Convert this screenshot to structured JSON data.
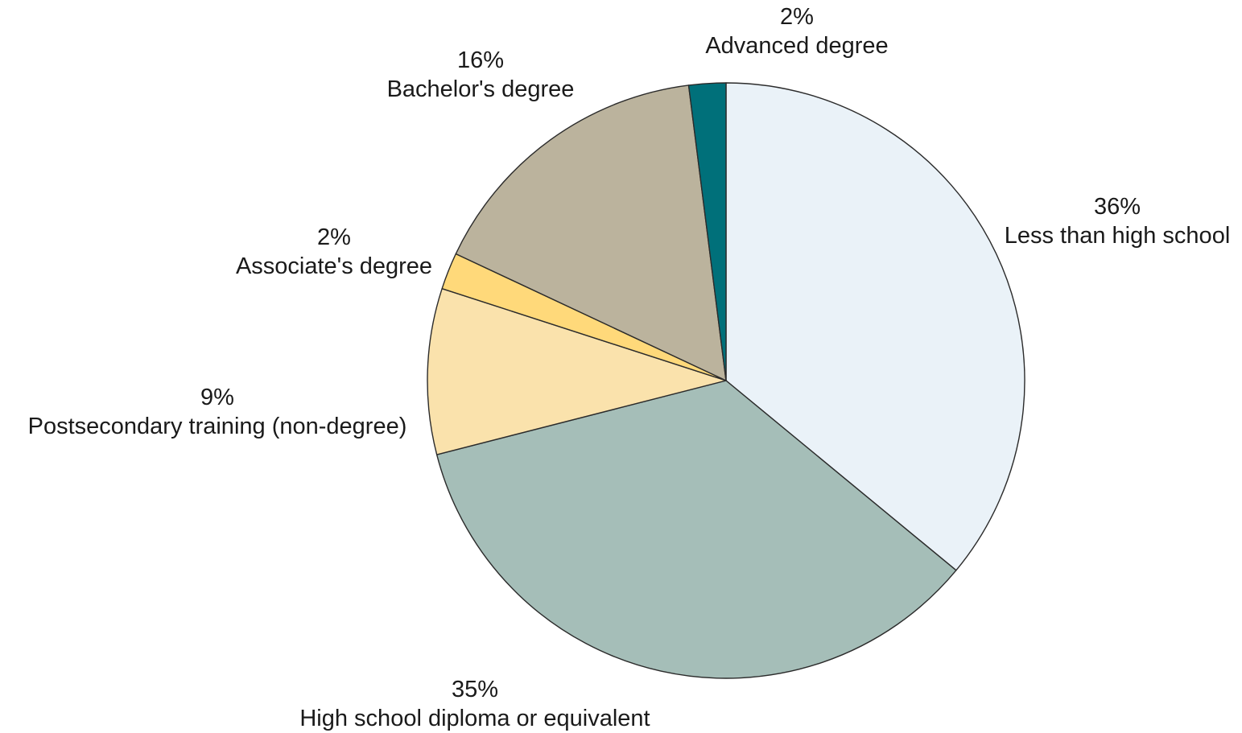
{
  "chart_data": {
    "type": "pie",
    "title": "",
    "slices": [
      {
        "name": "Less than high school",
        "value": 36,
        "value_label": "36%",
        "color": "#EAF2F8"
      },
      {
        "name": "High school diploma or equivalent",
        "value": 35,
        "value_label": "35%",
        "color": "#A5BEB8"
      },
      {
        "name": "Postsecondary training (non-degree)",
        "value": 9,
        "value_label": "9%",
        "color": "#FAE2AC"
      },
      {
        "name": "Associate's degree",
        "value": 2,
        "value_label": "2%",
        "color": "#FFD97A"
      },
      {
        "name": "Bachelor's degree",
        "value": 16,
        "value_label": "16%",
        "color": "#BBB39D"
      },
      {
        "name": "Advanced degree",
        "value": 2,
        "value_label": "2%",
        "color": "#00707A"
      }
    ],
    "start_angle": "12 o'clock",
    "direction": "clockwise",
    "legend": "none"
  }
}
